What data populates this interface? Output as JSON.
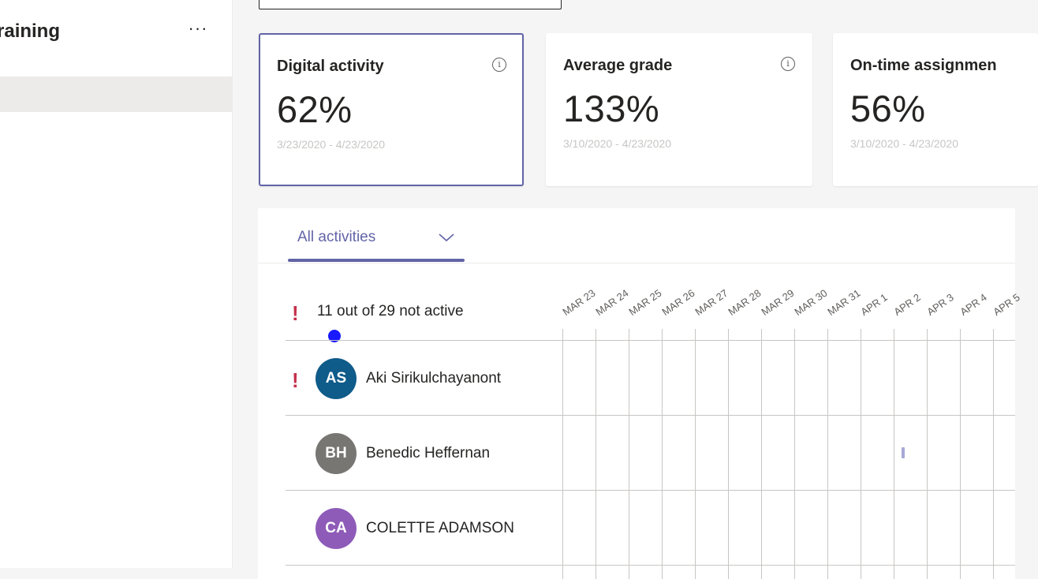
{
  "sidebar": {
    "title": "raining",
    "more_label": "···"
  },
  "cards": [
    {
      "title": "Digital activity",
      "value": "62%",
      "range": "3/23/2020 - 4/23/2020",
      "selected": true
    },
    {
      "title": "Average grade",
      "value": "133%",
      "range": "3/10/2020 - 4/23/2020",
      "selected": false
    },
    {
      "title": "On-time assignmen",
      "value": "56%",
      "range": "3/10/2020 - 4/23/2020",
      "selected": false
    }
  ],
  "filter": {
    "label": "All activities"
  },
  "summary": {
    "alert_icon": "!",
    "text": "11 out of 29 not active"
  },
  "days": [
    "MAR 23",
    "MAR 24",
    "MAR 25",
    "MAR 26",
    "MAR 27",
    "MAR 28",
    "MAR 29",
    "MAR 30",
    "MAR 31",
    "APR 1",
    "APR 2",
    "APR 3",
    "APR 4",
    "APR 5"
  ],
  "students": [
    {
      "initials": "AS",
      "name": "Aki Sirikulchayanont",
      "color": "#0f5b8a",
      "alert": true,
      "active_days": []
    },
    {
      "initials": "BH",
      "name": "Benedic Heffernan",
      "color": "#787672",
      "alert": false,
      "active_days": [
        "APR 2"
      ]
    },
    {
      "initials": "CA",
      "name": "COLETTE ADAMSON",
      "color": "#8e5bb8",
      "alert": false,
      "active_days": []
    }
  ]
}
